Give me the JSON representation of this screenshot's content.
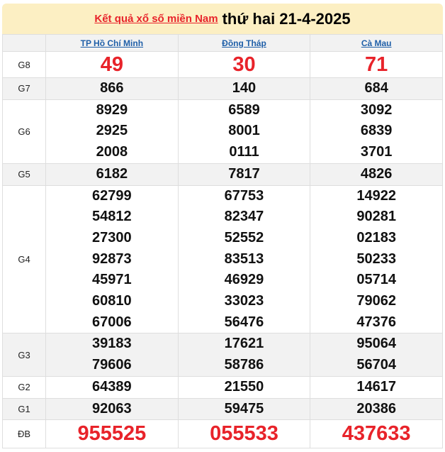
{
  "header": {
    "link": "Kết quả xổ số miền Nam",
    "date": "thứ hai 21-4-2025"
  },
  "provinces": [
    "TP Hồ Chí Minh",
    "Đồng Tháp",
    "Cà Mau"
  ],
  "prizes": [
    {
      "label": "G8",
      "values": [
        [
          "49"
        ],
        [
          "30"
        ],
        [
          "71"
        ]
      ]
    },
    {
      "label": "G7",
      "values": [
        [
          "866"
        ],
        [
          "140"
        ],
        [
          "684"
        ]
      ]
    },
    {
      "label": "G6",
      "values": [
        [
          "8929",
          "2925",
          "2008"
        ],
        [
          "6589",
          "8001",
          "0111"
        ],
        [
          "3092",
          "6839",
          "3701"
        ]
      ]
    },
    {
      "label": "G5",
      "values": [
        [
          "6182"
        ],
        [
          "7817"
        ],
        [
          "4826"
        ]
      ]
    },
    {
      "label": "G4",
      "values": [
        [
          "62799",
          "54812",
          "27300",
          "92873",
          "45971",
          "60810",
          "67006"
        ],
        [
          "67753",
          "82347",
          "52552",
          "83513",
          "46929",
          "33023",
          "56476"
        ],
        [
          "14922",
          "90281",
          "02183",
          "50233",
          "05714",
          "79062",
          "47376"
        ]
      ]
    },
    {
      "label": "G3",
      "values": [
        [
          "39183",
          "79606"
        ],
        [
          "17621",
          "58786"
        ],
        [
          "95064",
          "56704"
        ]
      ]
    },
    {
      "label": "G2",
      "values": [
        [
          "64389"
        ],
        [
          "21550"
        ],
        [
          "14617"
        ]
      ]
    },
    {
      "label": "G1",
      "values": [
        [
          "92063"
        ],
        [
          "59475"
        ],
        [
          "20386"
        ]
      ]
    },
    {
      "label": "ĐB",
      "values": [
        [
          "955525"
        ],
        [
          "055533"
        ],
        [
          "437633"
        ]
      ]
    }
  ],
  "colors": {
    "accent": "#e8232a",
    "link": "#1f5fa8",
    "banner": "#fcefc3"
  }
}
